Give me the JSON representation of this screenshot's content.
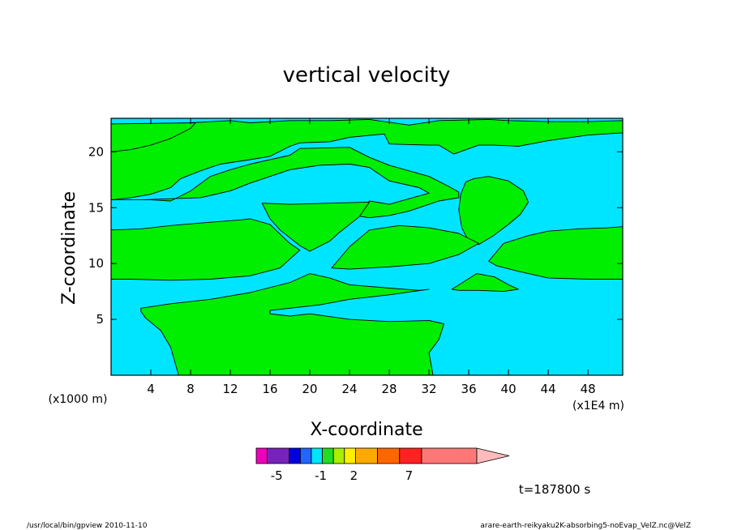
{
  "chart_data": {
    "type": "heatmap",
    "title": "vertical velocity",
    "xlabel": "X-coordinate",
    "ylabel": "Z-coordinate",
    "x_unit": "(x1E4 m)",
    "y_unit": "(x1000 m)",
    "xlim": [
      0,
      51.5
    ],
    "ylim": [
      0,
      23
    ],
    "x_ticks": [
      4,
      8,
      12,
      16,
      20,
      24,
      28,
      32,
      36,
      40,
      44,
      48
    ],
    "y_ticks": [
      5,
      10,
      15,
      20
    ],
    "colors": {
      "positive_region": "#00ee00",
      "negative_region": "#00e5ff"
    },
    "colorbar": {
      "labels": [
        "-5",
        "-1",
        "2",
        "7"
      ],
      "label_values": [
        -5,
        -1,
        2,
        7
      ],
      "segments": [
        {
          "lo": -7,
          "hi": -6,
          "color": "#ee00bb"
        },
        {
          "lo": -6,
          "hi": -4,
          "color": "#7722bb"
        },
        {
          "lo": -4,
          "hi": -3,
          "color": "#0000dd"
        },
        {
          "lo": -3,
          "hi": -2,
          "color": "#2266ff"
        },
        {
          "lo": -2,
          "hi": -1,
          "color": "#00e5ff"
        },
        {
          "lo": -1,
          "hi": 0,
          "color": "#22dd22"
        },
        {
          "lo": 0,
          "hi": 1,
          "color": "#aaee00"
        },
        {
          "lo": 1,
          "hi": 2,
          "color": "#ffee00"
        },
        {
          "lo": 2,
          "hi": 4,
          "color": "#ffaa00"
        },
        {
          "lo": 4,
          "hi": 6,
          "color": "#ff6600"
        },
        {
          "lo": 6,
          "hi": 8,
          "color": "#ff2222"
        },
        {
          "lo": 8,
          "hi": 13,
          "color": "#ff7777"
        }
      ],
      "arrow_color": "#ffbbbb"
    },
    "regions": [
      {
        "sign": "positive",
        "points": [
          [
            0,
            22.5
          ],
          [
            4,
            22.2
          ],
          [
            6,
            22.3
          ],
          [
            8,
            22.6
          ],
          [
            12,
            22.8
          ],
          [
            14,
            22.6
          ],
          [
            18,
            22.8
          ],
          [
            22,
            22.8
          ],
          [
            26,
            22.9
          ],
          [
            30,
            22.4
          ],
          [
            33,
            22.8
          ],
          [
            38,
            22.9
          ],
          [
            40,
            22.8
          ],
          [
            44,
            22.7
          ],
          [
            48,
            22.7
          ],
          [
            51.5,
            22.8
          ],
          [
            51.5,
            21.7
          ],
          [
            48,
            21.5
          ],
          [
            44,
            21
          ],
          [
            41,
            20.5
          ],
          [
            38.5,
            20.6
          ],
          [
            37,
            20.6
          ],
          [
            34.5,
            19.8
          ],
          [
            33,
            20.6
          ],
          [
            32,
            20.6
          ],
          [
            28,
            20.7
          ],
          [
            27.5,
            21.6
          ],
          [
            24,
            21.3
          ],
          [
            22,
            20.9
          ],
          [
            19,
            20.8
          ],
          [
            18,
            20.5
          ],
          [
            16,
            19.6
          ],
          [
            14,
            19.3
          ],
          [
            11,
            18.9
          ],
          [
            9,
            18.3
          ],
          [
            7,
            17.6
          ],
          [
            6,
            16.8
          ],
          [
            4,
            16.2
          ],
          [
            2,
            15.9
          ],
          [
            0,
            15.7
          ]
        ]
      },
      {
        "sign": "positive",
        "points": [
          [
            0,
            22.5
          ],
          [
            0,
            20
          ],
          [
            2,
            20.2
          ],
          [
            4,
            20.6
          ],
          [
            6,
            21.2
          ],
          [
            8,
            22.1
          ],
          [
            8.5,
            22.6
          ]
        ]
      },
      {
        "sign": "positive",
        "points": [
          [
            0,
            15.7
          ],
          [
            4,
            15.7
          ],
          [
            6,
            15.6
          ],
          [
            8,
            16.5
          ],
          [
            10,
            17.8
          ],
          [
            12,
            18.4
          ],
          [
            14,
            18.9
          ],
          [
            16,
            19.3
          ],
          [
            18,
            19.7
          ],
          [
            19,
            20.3
          ],
          [
            24,
            20.4
          ],
          [
            26,
            19.5
          ],
          [
            28,
            18.8
          ],
          [
            32,
            17.8
          ],
          [
            34,
            16.9
          ],
          [
            35,
            16.4
          ],
          [
            35,
            15.9
          ],
          [
            33,
            15.6
          ],
          [
            30,
            14.7
          ],
          [
            28,
            14.3
          ],
          [
            26,
            14.1
          ],
          [
            24.5,
            14.3
          ],
          [
            26,
            15.6
          ],
          [
            28,
            15.3
          ],
          [
            30,
            15.8
          ],
          [
            32,
            16.3
          ],
          [
            31,
            16.8
          ],
          [
            28,
            17.4
          ],
          [
            26,
            18.6
          ],
          [
            24,
            18.9
          ],
          [
            21,
            18.8
          ],
          [
            18,
            18.4
          ],
          [
            14,
            17.2
          ],
          [
            12,
            16.5
          ],
          [
            9,
            15.9
          ],
          [
            6,
            15.8
          ],
          [
            3,
            15.7
          ]
        ]
      },
      {
        "sign": "positive",
        "points": [
          [
            0,
            15.7
          ],
          [
            0,
            17
          ],
          [
            0,
            20
          ]
        ]
      },
      {
        "sign": "positive",
        "points": [
          [
            35.7,
            17.3
          ],
          [
            36.5,
            17.6
          ],
          [
            38,
            17.8
          ],
          [
            40,
            17.4
          ],
          [
            41.5,
            16.5
          ],
          [
            42,
            15.5
          ],
          [
            41.2,
            14.4
          ],
          [
            40,
            13.5
          ],
          [
            38.5,
            12.5
          ],
          [
            37,
            11.7
          ],
          [
            36,
            12
          ],
          [
            35.3,
            13.2
          ],
          [
            35,
            14.8
          ],
          [
            35.2,
            16.2
          ]
        ]
      },
      {
        "sign": "positive",
        "points": [
          [
            15.2,
            15.4
          ],
          [
            18,
            15.3
          ],
          [
            22,
            15.4
          ],
          [
            26,
            15.5
          ],
          [
            25,
            14.2
          ],
          [
            23,
            12.8
          ],
          [
            22,
            12
          ],
          [
            20,
            11.1
          ],
          [
            19,
            11.6
          ],
          [
            17,
            13
          ],
          [
            16,
            14
          ]
        ]
      },
      {
        "sign": "positive",
        "points": [
          [
            0,
            13
          ],
          [
            3,
            13.1
          ],
          [
            6,
            13.4
          ],
          [
            10,
            13.7
          ],
          [
            13,
            13.9
          ],
          [
            14,
            14
          ],
          [
            16,
            13.5
          ],
          [
            18,
            11.8
          ],
          [
            19,
            11.2
          ],
          [
            18,
            10.4
          ],
          [
            17,
            9.6
          ],
          [
            14,
            8.9
          ],
          [
            10,
            8.6
          ],
          [
            6,
            8.5
          ],
          [
            2,
            8.6
          ],
          [
            0,
            8.6
          ]
        ]
      },
      {
        "sign": "positive",
        "points": [
          [
            22.2,
            9.6
          ],
          [
            24,
            11.5
          ],
          [
            26,
            13
          ],
          [
            29,
            13.4
          ],
          [
            32,
            13.2
          ],
          [
            35,
            12.7
          ],
          [
            37,
            11.8
          ],
          [
            35,
            10.8
          ],
          [
            32,
            10
          ],
          [
            28,
            9.7
          ],
          [
            24,
            9.5
          ]
        ]
      },
      {
        "sign": "positive",
        "points": [
          [
            38,
            10.2
          ],
          [
            39.5,
            11.8
          ],
          [
            42,
            12.5
          ],
          [
            44,
            12.9
          ],
          [
            47,
            13.1
          ],
          [
            50,
            13.2
          ],
          [
            51.5,
            13.3
          ],
          [
            51.5,
            8.6
          ],
          [
            48,
            8.6
          ],
          [
            44,
            8.7
          ],
          [
            41,
            9.3
          ],
          [
            38.8,
            9.8
          ]
        ]
      },
      {
        "sign": "positive",
        "points": [
          [
            34.3,
            7.7
          ],
          [
            36.8,
            9.1
          ],
          [
            38.6,
            8.8
          ],
          [
            40,
            8.1
          ],
          [
            41,
            7.7
          ],
          [
            39.5,
            7.5
          ],
          [
            37,
            7.6
          ],
          [
            35,
            7.6
          ]
        ]
      },
      {
        "sign": "positive",
        "points": [
          [
            3,
            6
          ],
          [
            6,
            6.4
          ],
          [
            10,
            6.8
          ],
          [
            14,
            7.4
          ],
          [
            18,
            8.3
          ],
          [
            20,
            9.1
          ],
          [
            22,
            8.7
          ],
          [
            24,
            8.1
          ],
          [
            28,
            7.8
          ],
          [
            31,
            7.6
          ],
          [
            32,
            7.7
          ],
          [
            28,
            7.2
          ],
          [
            24,
            6.8
          ],
          [
            21,
            6.3
          ],
          [
            18,
            6
          ],
          [
            16,
            5.8
          ],
          [
            16,
            5.5
          ],
          [
            18,
            5.3
          ],
          [
            20,
            5.5
          ],
          [
            24,
            5
          ],
          [
            28,
            4.8
          ],
          [
            32,
            4.9
          ],
          [
            33.5,
            4.6
          ],
          [
            33,
            3.2
          ],
          [
            32,
            2
          ],
          [
            32.4,
            0
          ],
          [
            6.8,
            0
          ],
          [
            6,
            2.5
          ],
          [
            5,
            4
          ],
          [
            3.5,
            5.1
          ],
          [
            3,
            5.7
          ]
        ]
      }
    ]
  },
  "labels": {
    "y_unit": "(x1000 m)",
    "x_unit": "(x1E4 m)",
    "time": "t=187800 s",
    "footer_left": "/usr/local/bin/gpview  2010-11-10",
    "footer_right": "arare-earth-reikyaku2K-absorbing5-noEvap_VelZ.nc@VelZ"
  }
}
